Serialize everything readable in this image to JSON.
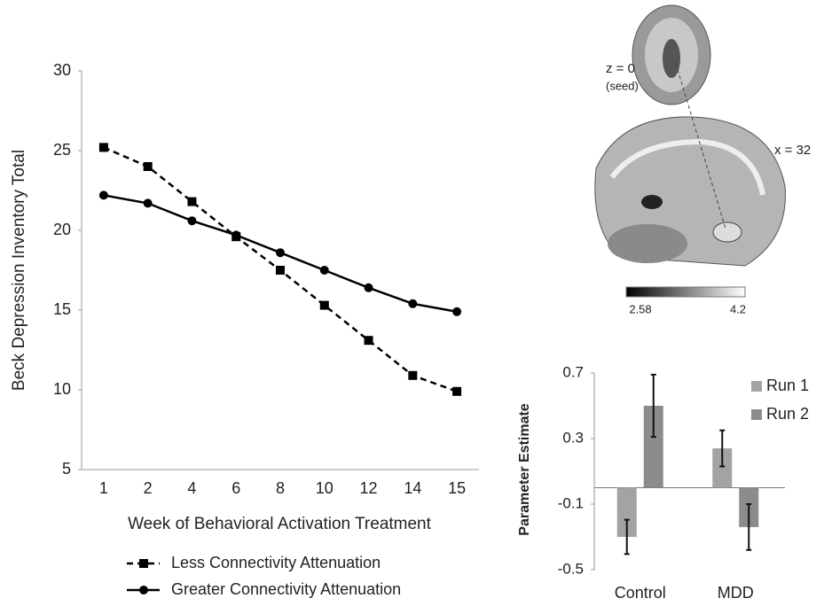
{
  "chart_data": [
    {
      "type": "line",
      "y_label": "Beck Depression Inventory Total",
      "x_label": "Week of Behavioral Activation Treatment",
      "categories": [
        "1",
        "2",
        "4",
        "6",
        "8",
        "10",
        "12",
        "14",
        "15"
      ],
      "series": [
        {
          "name": "Less Connectivity Attenuation",
          "color": "#000000",
          "line_style": "dashed",
          "marker": "square",
          "values": [
            25.2,
            24.0,
            21.8,
            19.6,
            17.5,
            15.3,
            13.1,
            10.9,
            9.9
          ]
        },
        {
          "name": "Greater Connectivity Attenuation",
          "color": "#000000",
          "line_style": "solid",
          "marker": "circle",
          "values": [
            22.2,
            21.7,
            20.6,
            19.7,
            18.6,
            17.5,
            16.4,
            15.4,
            14.9
          ]
        }
      ],
      "ylim": [
        5,
        30
      ],
      "yticks": [
        5,
        10,
        15,
        20,
        25,
        30
      ],
      "legend": "below"
    },
    {
      "type": "bar",
      "y_label": "Parameter Estimate",
      "categories": [
        "Control",
        "MDD"
      ],
      "series": [
        {
          "name": "Run 1",
          "color": "#a3a3a3",
          "values": [
            -0.3,
            0.24
          ],
          "errors": [
            0.105,
            0.11
          ]
        },
        {
          "name": "Run 2",
          "color": "#8c8c8c",
          "values": [
            0.5,
            -0.24
          ],
          "errors": [
            0.19,
            0.14
          ]
        }
      ],
      "ylim": [
        -0.5,
        0.7
      ],
      "yticks": [
        0.7,
        0.3,
        -0.1,
        -0.5
      ],
      "legend": "upper right"
    }
  ],
  "brain_figure": {
    "axial_label": "z = 0",
    "axial_note": "(seed)",
    "sagittal_label": "x = 32",
    "colorbar": {
      "min": 2.58,
      "max": 4.2
    }
  }
}
